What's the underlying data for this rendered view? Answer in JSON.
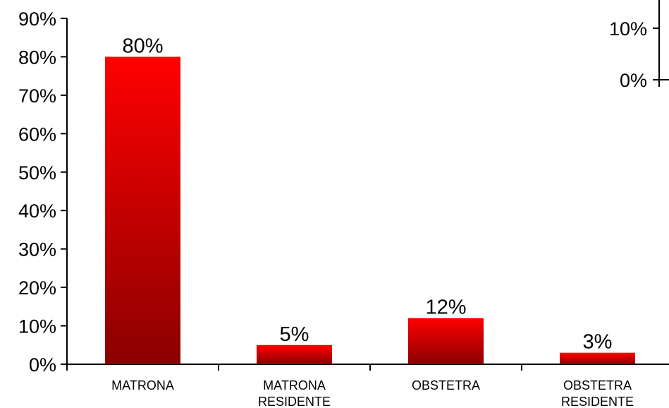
{
  "chart_data": [
    {
      "type": "bar",
      "categories": [
        [
          "MATRONA"
        ],
        [
          "MATRONA",
          "RESIDENTE"
        ],
        [
          "OBSTETRA"
        ],
        [
          "OBSTETRA",
          "RESIDENTE"
        ]
      ],
      "values": [
        80,
        5,
        12,
        3
      ],
      "data_labels": [
        "80%",
        "5%",
        "12%",
        "3%"
      ],
      "y_ticks": [
        "0%",
        "10%",
        "20%",
        "30%",
        "40%",
        "50%",
        "60%",
        "70%",
        "80%",
        "90%"
      ],
      "ylim": [
        0,
        90
      ],
      "bar_color": "#ff0000",
      "bar_color_dark": "#8b0000",
      "grid": false,
      "legend": "none"
    },
    {
      "type": "bar",
      "partial": true,
      "y_ticks": [
        "0%",
        "10%"
      ],
      "ylim": [
        0,
        10
      ]
    }
  ]
}
